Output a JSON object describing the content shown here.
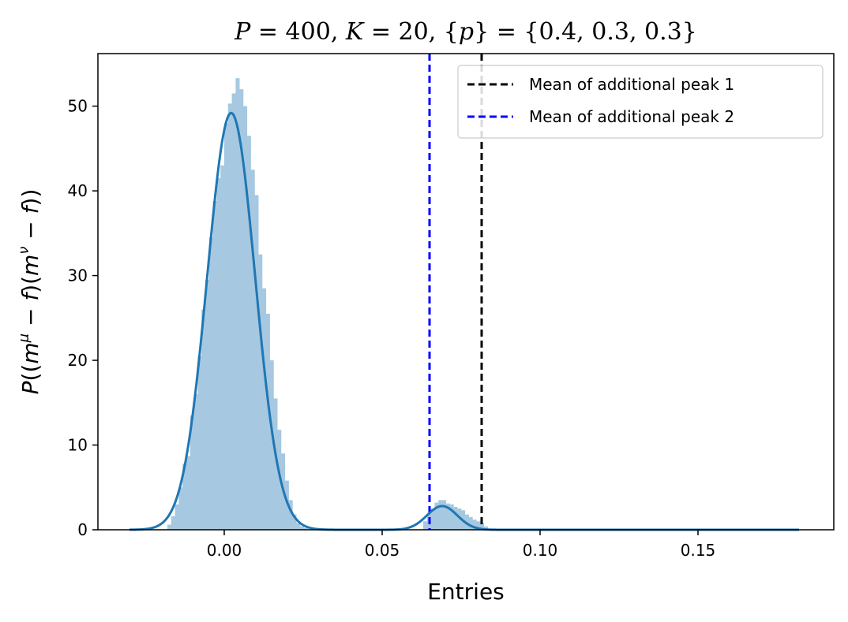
{
  "chart_data": {
    "type": "histogram",
    "title": "P = 400, K = 20, {p} = {0.4, 0.3, 0.3}",
    "xlabel": "Entries",
    "ylabel": "P((m^μ − f)(m^ν − f))",
    "xlim": [
      -0.04,
      0.193
    ],
    "ylim": [
      0,
      56.2
    ],
    "x_ticks": [
      0.0,
      0.05,
      0.1,
      0.15
    ],
    "x_tick_labels": [
      "0.00",
      "0.05",
      "0.10",
      "0.15"
    ],
    "y_ticks": [
      0,
      10,
      20,
      30,
      40,
      50
    ],
    "y_tick_labels": [
      "0",
      "10",
      "20",
      "30",
      "40",
      "50"
    ],
    "grid": false,
    "legend_position": "upper-right",
    "histogram": {
      "color": "#a6c8e0",
      "bin_width": 0.0012,
      "bins": [
        [
          -0.018,
          0.6
        ],
        [
          -0.0168,
          1.6
        ],
        [
          -0.0156,
          3.0
        ],
        [
          -0.0144,
          5.0
        ],
        [
          -0.0132,
          7.8
        ],
        [
          -0.012,
          8.7
        ],
        [
          -0.0108,
          13.5
        ],
        [
          -0.0096,
          16.0
        ],
        [
          -0.0084,
          20.5
        ],
        [
          -0.0072,
          26.0
        ],
        [
          -0.006,
          29.5
        ],
        [
          -0.0048,
          34.5
        ],
        [
          -0.0036,
          38.8
        ],
        [
          -0.0024,
          41.5
        ],
        [
          -0.0012,
          43.0
        ],
        [
          0.0,
          48.0
        ],
        [
          0.0012,
          50.3
        ],
        [
          0.0024,
          51.5
        ],
        [
          0.0036,
          53.3
        ],
        [
          0.0048,
          52.0
        ],
        [
          0.006,
          50.0
        ],
        [
          0.0072,
          46.5
        ],
        [
          0.0084,
          42.5
        ],
        [
          0.0096,
          39.5
        ],
        [
          0.0108,
          32.5
        ],
        [
          0.012,
          28.5
        ],
        [
          0.0132,
          25.5
        ],
        [
          0.0144,
          20.0
        ],
        [
          0.0156,
          15.5
        ],
        [
          0.0168,
          11.8
        ],
        [
          0.018,
          9.0
        ],
        [
          0.0192,
          5.8
        ],
        [
          0.0204,
          3.5
        ],
        [
          0.0216,
          1.8
        ],
        [
          0.0228,
          0.8
        ],
        [
          0.024,
          0.4
        ],
        [
          0.0252,
          0.2
        ],
        [
          0.063,
          1.0
        ],
        [
          0.0642,
          2.0
        ],
        [
          0.0654,
          2.5
        ],
        [
          0.0666,
          3.2
        ],
        [
          0.0678,
          3.5
        ],
        [
          0.069,
          3.5
        ],
        [
          0.0702,
          3.1
        ],
        [
          0.0714,
          3.0
        ],
        [
          0.0726,
          2.7
        ],
        [
          0.0738,
          2.5
        ],
        [
          0.075,
          2.3
        ],
        [
          0.0762,
          1.8
        ],
        [
          0.0774,
          1.5
        ],
        [
          0.0786,
          1.2
        ],
        [
          0.0798,
          1.0
        ],
        [
          0.081,
          0.8
        ],
        [
          0.0822,
          0.4
        ]
      ]
    },
    "kde": {
      "color": "#1f77b4",
      "x_range": [
        -0.03,
        0.182
      ],
      "components": [
        {
          "mean": 0.0022,
          "sd": 0.0076,
          "peak": 49.2
        },
        {
          "mean": 0.069,
          "sd": 0.0048,
          "peak": 2.8
        }
      ]
    },
    "vlines": [
      {
        "x": 0.0815,
        "color": "#000000",
        "label": "Mean of additional peak 1"
      },
      {
        "x": 0.065,
        "color": "#0000ff",
        "label": "Mean of additional peak 2"
      }
    ]
  }
}
